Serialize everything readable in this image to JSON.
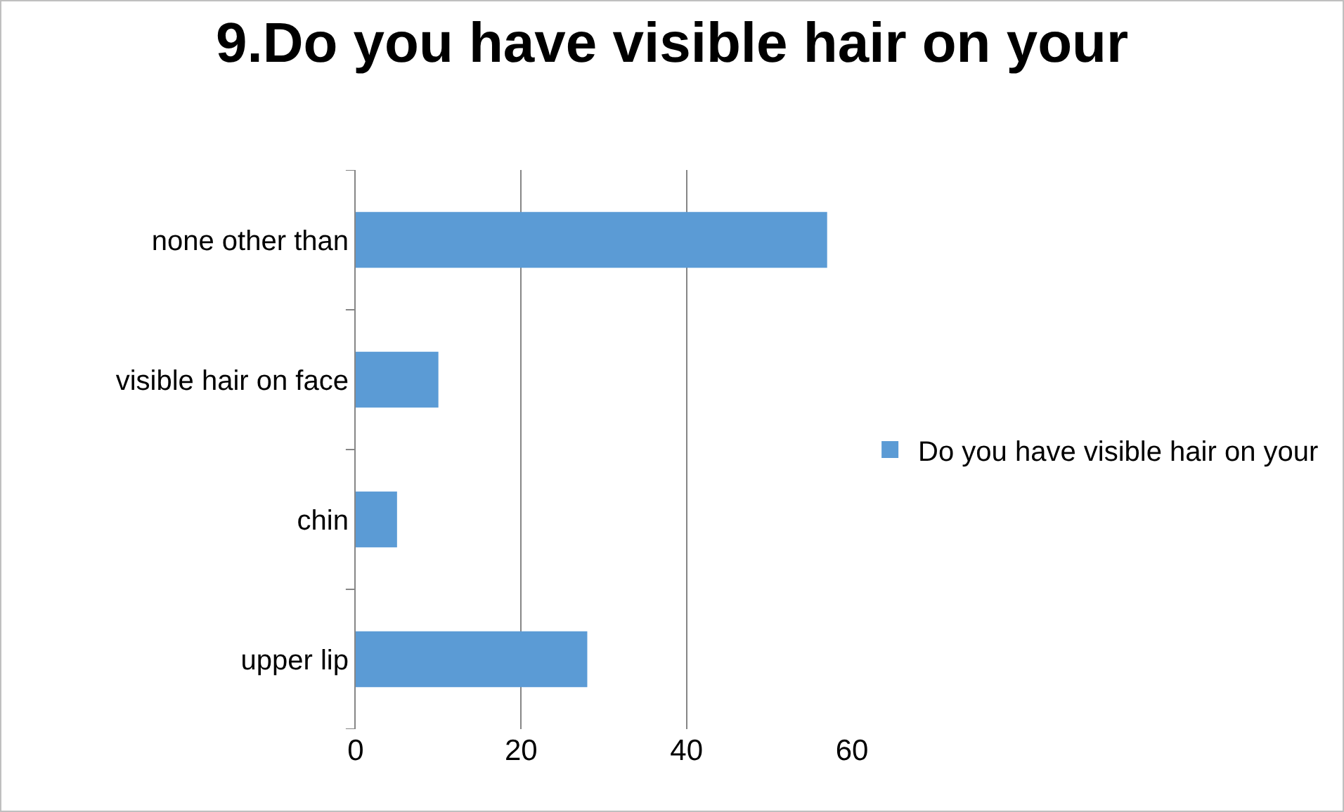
{
  "chart_data": {
    "type": "bar",
    "title": "9.Do you have visible hair on your",
    "orientation": "horizontal",
    "categories": [
      "none other than",
      "visible hair on face",
      "chin",
      "upper lip"
    ],
    "series": [
      {
        "name": "Do you have visible hair on your",
        "color": "#5b9bd5",
        "values": [
          57,
          10,
          5,
          28
        ]
      }
    ],
    "xlim": [
      0,
      60
    ],
    "xticks": [
      0,
      20,
      40,
      60
    ],
    "grid": "x",
    "legend": "right"
  }
}
